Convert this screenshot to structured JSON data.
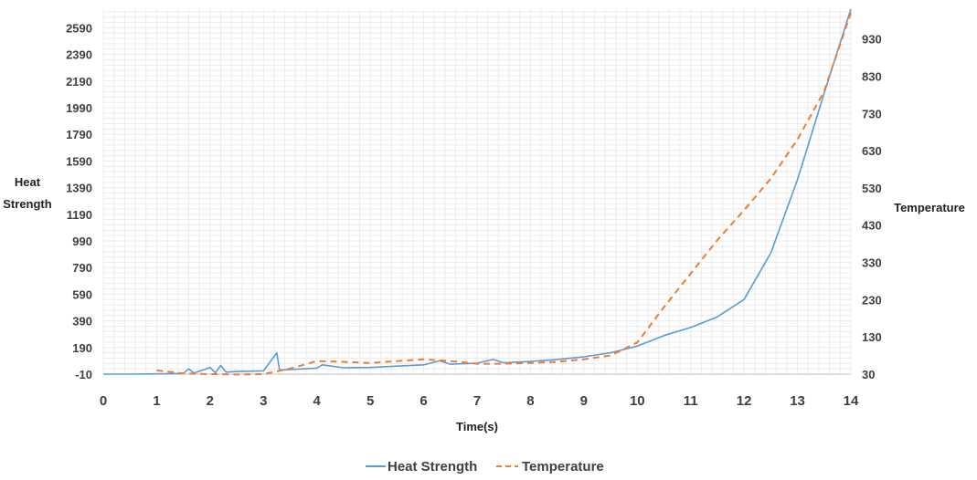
{
  "chart_data": {
    "type": "line",
    "title": "",
    "xlabel": "Time(s)",
    "ylabel_left": "Heat Strength",
    "ylabel_right": "Temperature",
    "xlim": [
      0,
      14
    ],
    "ylim_left": [
      -10,
      2730
    ],
    "ylim_right": [
      30,
      1010
    ],
    "x_ticks": [
      0,
      1,
      2,
      3,
      4,
      5,
      6,
      7,
      8,
      9,
      10,
      11,
      12,
      13,
      14
    ],
    "y_left_ticks": [
      -10,
      190,
      390,
      590,
      790,
      990,
      1190,
      1390,
      1590,
      1790,
      1990,
      2190,
      2390,
      2590
    ],
    "y_right_ticks": [
      30,
      130,
      230,
      330,
      430,
      530,
      630,
      730,
      830,
      930
    ],
    "grid": true,
    "legend_position": "bottom",
    "series": [
      {
        "name": "Heat Strength",
        "axis": "left",
        "color": "#5b9bd5",
        "line_style": "solid",
        "x": [
          0,
          0.5,
          1,
          1.5,
          1.6,
          1.7,
          2,
          2.1,
          2.2,
          2.3,
          2.5,
          3,
          3.25,
          3.3,
          3.5,
          4,
          4.1,
          4.5,
          5,
          5.5,
          6,
          6.3,
          6.5,
          7,
          7.3,
          7.5,
          8,
          8.5,
          9,
          9.5,
          10,
          10.5,
          11,
          11.5,
          12,
          12.5,
          13,
          13.5,
          14
        ],
        "y": [
          -10,
          -10,
          -8,
          -5,
          30,
          -2,
          40,
          0,
          55,
          5,
          10,
          15,
          150,
          20,
          25,
          35,
          60,
          38,
          40,
          50,
          60,
          90,
          65,
          72,
          100,
          75,
          85,
          100,
          120,
          150,
          200,
          280,
          340,
          420,
          550,
          900,
          1450,
          2100,
          2730
        ]
      },
      {
        "name": "Temperature",
        "axis": "right",
        "color": "#ed7d31",
        "line_style": "dashed",
        "x": [
          1,
          1.5,
          2,
          2.5,
          3,
          3.5,
          4,
          4.5,
          5,
          5.5,
          6,
          6.5,
          7,
          7.5,
          8,
          8.5,
          9,
          9.5,
          10,
          10.5,
          11,
          11.5,
          12,
          12.5,
          13,
          13.5,
          14
        ],
        "y": [
          40,
          32,
          30,
          29,
          30,
          45,
          65,
          63,
          60,
          65,
          70,
          65,
          58,
          58,
          60,
          63,
          70,
          80,
          115,
          210,
          300,
          390,
          470,
          555,
          660,
          790,
          1000
        ]
      }
    ]
  }
}
